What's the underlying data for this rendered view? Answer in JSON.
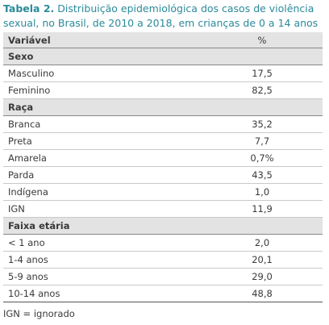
{
  "title": {
    "label": "Tabela 2.",
    "text": "Distribuição epidemiológica dos casos de violência sexual, no Brasil, de 2010 a 2018, em crianças de 0 a 14 anos"
  },
  "table": {
    "header": [
      "Variável",
      "%"
    ],
    "sections": [
      {
        "name": "Sexo",
        "rows": [
          [
            "Masculino",
            "17,5"
          ],
          [
            "Feminino",
            "82,5"
          ]
        ]
      },
      {
        "name": "Raça",
        "rows": [
          [
            "Branca",
            "35,2"
          ],
          [
            "Preta",
            "7,7"
          ],
          [
            "Amarela",
            "0,7%"
          ],
          [
            "Parda",
            "43,5"
          ],
          [
            "Indígena",
            "1,0"
          ],
          [
            "IGN",
            "11,9"
          ]
        ]
      },
      {
        "name": "Faixa etária",
        "rows": [
          [
            "< 1 ano",
            "2,0"
          ],
          [
            "1-4 anos",
            "20,1"
          ],
          [
            "5-9 anos",
            "29,0"
          ],
          [
            "10-14 anos",
            "48,8"
          ]
        ]
      }
    ]
  },
  "footnote": "IGN = ignorado"
}
